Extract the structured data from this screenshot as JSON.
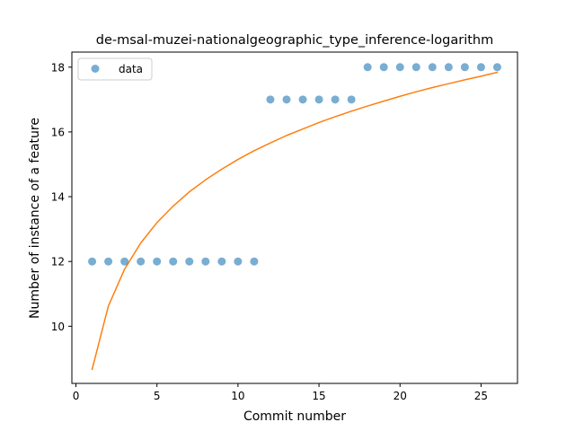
{
  "chart_data": {
    "type": "scatter",
    "title": "de-msal-muzei-nationalgeographic_type_inference-logarithm",
    "xlabel": "Commit number",
    "ylabel": "Number of instance of a feature",
    "xlim": [
      -0.25,
      27.25
    ],
    "ylim": [
      8.235,
      18.465
    ],
    "xticks": [
      0,
      5,
      10,
      15,
      20,
      25
    ],
    "yticks": [
      10,
      12,
      14,
      16,
      18
    ],
    "grid": false,
    "legend_position": "upper-left",
    "series": [
      {
        "name": "data",
        "kind": "scatter",
        "color": "#1f77b4",
        "x": [
          1,
          2,
          3,
          4,
          5,
          6,
          7,
          8,
          9,
          10,
          11,
          12,
          13,
          14,
          15,
          16,
          17,
          18,
          19,
          20,
          21,
          22,
          23,
          24,
          25,
          26
        ],
        "y": [
          12,
          12,
          12,
          12,
          12,
          12,
          12,
          12,
          12,
          12,
          12,
          17,
          17,
          17,
          17,
          17,
          17,
          18,
          18,
          18,
          18,
          18,
          18,
          18,
          18,
          18
        ]
      },
      {
        "kind": "line",
        "color": "#ff7f0e",
        "x": [
          1,
          2,
          3,
          4,
          5,
          6,
          7,
          8,
          9,
          10,
          11,
          12,
          13,
          14,
          15,
          16,
          17,
          18,
          19,
          20,
          21,
          22,
          23,
          24,
          25,
          26
        ],
        "y": [
          8.67,
          10.62,
          11.76,
          12.57,
          13.2,
          13.71,
          14.15,
          14.52,
          14.85,
          15.15,
          15.42,
          15.66,
          15.89,
          16.09,
          16.29,
          16.47,
          16.64,
          16.8,
          16.95,
          17.1,
          17.24,
          17.37,
          17.49,
          17.61,
          17.72,
          17.84
        ]
      }
    ]
  }
}
